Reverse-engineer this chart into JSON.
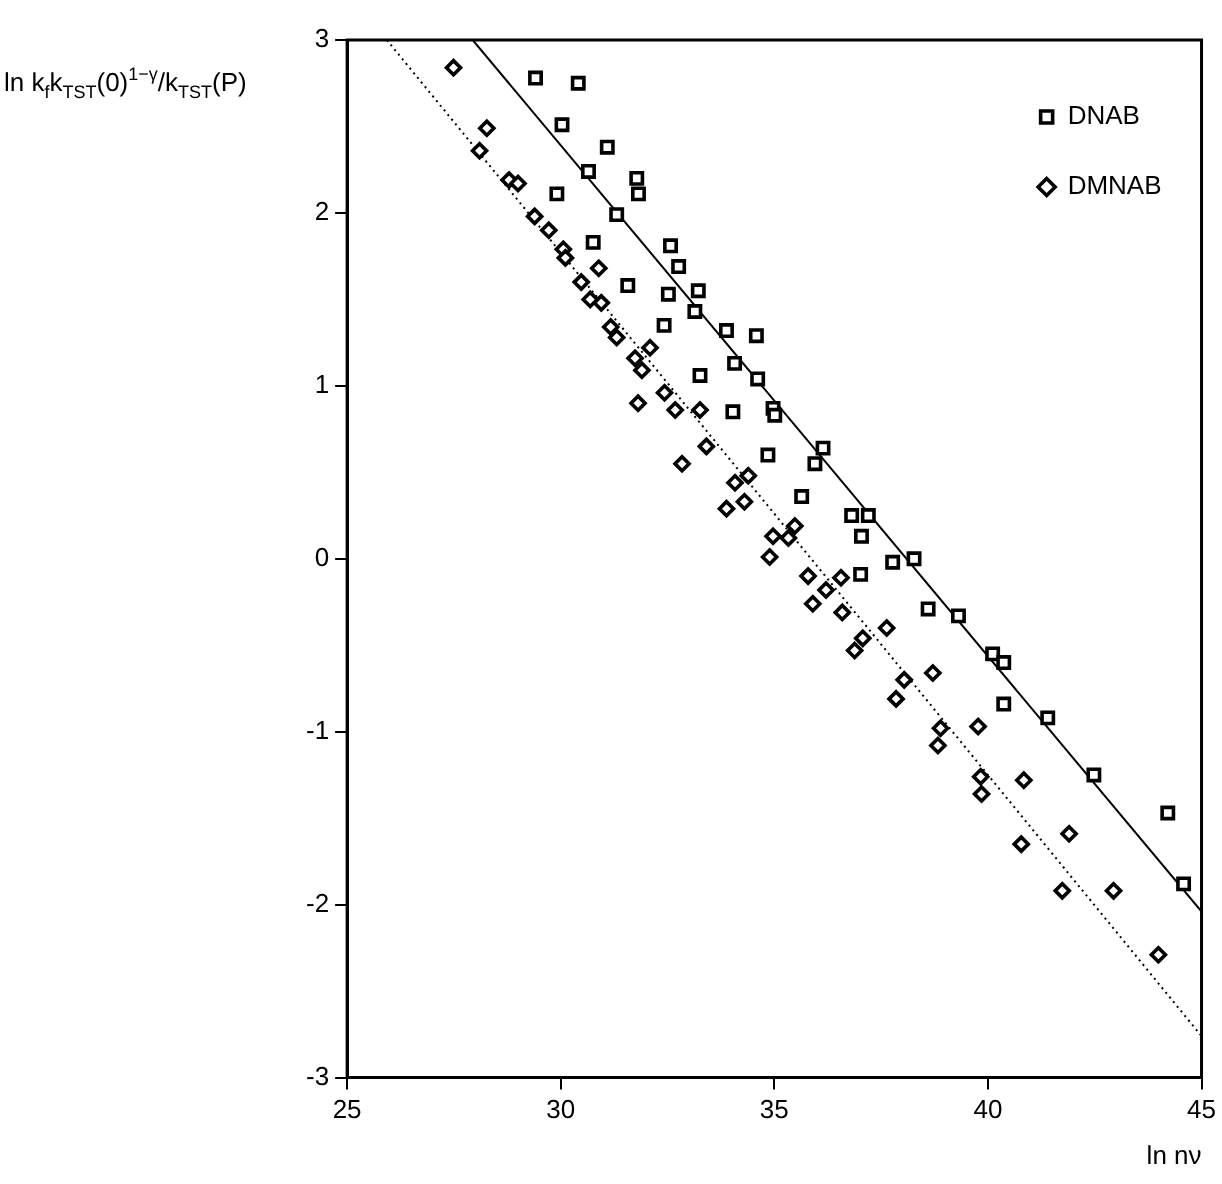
{
  "chart_data": {
    "type": "scatter",
    "xlabel": "ln nν",
    "ylabel": "ln k$_{f}$k$_{TST}$(0)$^{1−γ}$/k$_{TST}$(P)",
    "xlim": [
      25,
      45
    ],
    "xticks": [
      25,
      30,
      35,
      40,
      45
    ],
    "ylim": [
      -3,
      3
    ],
    "yticks": [
      -3,
      -2,
      -1,
      0,
      1,
      2,
      3
    ],
    "grid": false,
    "legend": "top right",
    "series": [
      {
        "name": "DNAB",
        "type": "scatter",
        "marker": "square",
        "color": "#000000",
        "x": [
          29.41,
          30.41,
          30.03,
          31.09,
          30.65,
          31.78,
          31.82,
          29.91,
          31.31,
          30.76,
          32.57,
          32.76,
          31.57,
          32.52,
          33.22,
          33.14,
          32.42,
          33.88,
          34.58,
          34.07,
          34.61,
          33.26,
          34.03,
          34.97,
          35.01,
          34.85,
          36.14,
          35.95,
          35.64,
          36.81,
          37.2,
          37.04,
          37.77,
          38.27,
          37.02,
          38.6,
          39.31,
          40.11,
          40.37,
          40.37,
          41.4,
          42.48,
          44.21,
          44.58
        ],
        "values": [
          2.78,
          2.75,
          2.51,
          2.38,
          2.24,
          2.2,
          2.11,
          2.11,
          1.99,
          1.83,
          1.81,
          1.69,
          1.58,
          1.53,
          1.55,
          1.43,
          1.35,
          1.32,
          1.29,
          1.13,
          1.04,
          1.06,
          0.85,
          0.87,
          0.83,
          0.6,
          0.64,
          0.55,
          0.36,
          0.25,
          0.25,
          0.13,
          -0.02,
          0.0,
          -0.09,
          -0.29,
          -0.33,
          -0.55,
          -0.6,
          -0.84,
          -0.92,
          -1.25,
          -1.47,
          -1.88
        ]
      },
      {
        "name": "DMNAB",
        "type": "scatter",
        "marker": "diamond",
        "color": "#000000",
        "x": [
          27.49,
          28.27,
          28.1,
          28.79,
          29.0,
          29.39,
          29.72,
          30.06,
          30.11,
          30.89,
          30.48,
          30.69,
          30.95,
          31.17,
          31.31,
          32.09,
          31.74,
          31.9,
          32.43,
          31.81,
          32.68,
          33.26,
          33.41,
          32.84,
          34.08,
          34.39,
          33.88,
          34.3,
          34.97,
          34.89,
          35.48,
          35.33,
          35.79,
          36.56,
          36.21,
          35.9,
          36.59,
          37.63,
          37.07,
          36.88,
          38.04,
          38.71,
          37.85,
          38.89,
          39.77,
          38.83,
          39.83,
          39.85,
          40.84,
          41.9,
          40.78,
          41.74,
          42.94,
          43.99
        ],
        "values": [
          2.84,
          2.49,
          2.36,
          2.19,
          2.17,
          1.98,
          1.9,
          1.79,
          1.74,
          1.68,
          1.6,
          1.5,
          1.48,
          1.34,
          1.28,
          1.22,
          1.16,
          1.09,
          0.96,
          0.9,
          0.86,
          0.86,
          0.65,
          0.55,
          0.44,
          0.48,
          0.29,
          0.33,
          0.13,
          0.01,
          0.19,
          0.12,
          -0.1,
          -0.11,
          -0.18,
          -0.26,
          -0.31,
          -0.4,
          -0.46,
          -0.53,
          -0.7,
          -0.66,
          -0.81,
          -0.98,
          -0.97,
          -1.08,
          -1.26,
          -1.36,
          -1.28,
          -1.59,
          -1.65,
          -1.92,
          -1.92,
          -2.29
        ]
      },
      {
        "type": "line",
        "line_style": "solid",
        "color": "#000000",
        "x": [
          27.94,
          45
        ],
        "values": [
          3,
          -2.04
        ]
      },
      {
        "type": "line",
        "line_style": "dotted",
        "color": "#000000",
        "x": [
          25.93,
          45
        ],
        "values": [
          3,
          -2.76
        ]
      }
    ]
  }
}
